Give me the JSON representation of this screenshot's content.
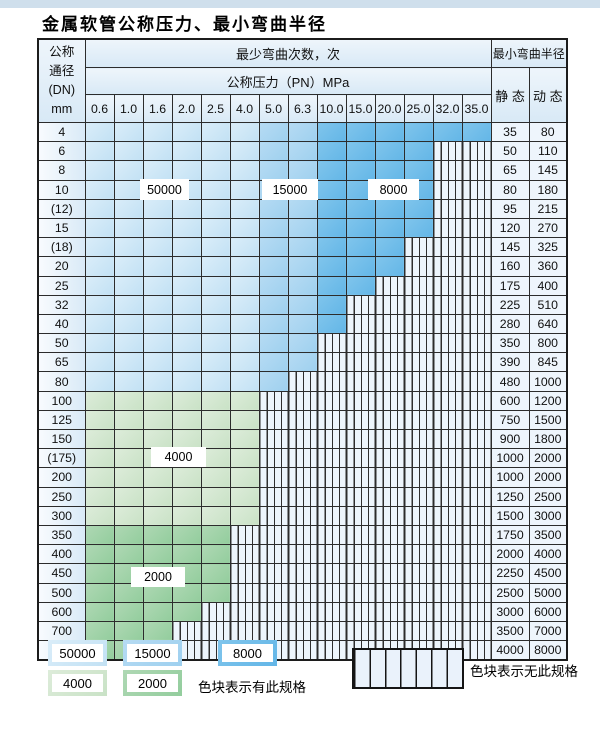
{
  "page": {
    "title": "金属软管公称压力、最小弯曲半径"
  },
  "table": {
    "header": {
      "dn_lines": [
        "公称",
        "通径",
        "(DN)",
        "mm"
      ],
      "bend_cycles": "最少弯曲次数，次",
      "pressure": "公称压力（PN）MPa",
      "radius": "最小弯曲半径",
      "static": "静 态",
      "dynamic": "动 态",
      "pressures": [
        "0.6",
        "1.0",
        "1.6",
        "2.0",
        "2.5",
        "4.0",
        "5.0",
        "6.3",
        "10.0",
        "15.0",
        "20.0",
        "25.0",
        "32.0",
        "35.0"
      ]
    },
    "rating_codes": {
      "A": "50000",
      "B": "15000",
      "C": "8000",
      "D": "4000",
      "E": "2000",
      "-": "none"
    },
    "rows": [
      {
        "dn": "4",
        "ratings": "AAAAAABBCCCCCC",
        "static": "35",
        "dynamic": "80"
      },
      {
        "dn": "6",
        "ratings": "AAAAAABBCCCC--",
        "static": "50",
        "dynamic": "110"
      },
      {
        "dn": "8",
        "ratings": "AAAAAABBCCCC--",
        "static": "65",
        "dynamic": "145"
      },
      {
        "dn": "10",
        "ratings": "AAAAAABBCCCC--",
        "static": "80",
        "dynamic": "180"
      },
      {
        "dn": "(12)",
        "ratings": "AAAAAABBCCCC--",
        "static": "95",
        "dynamic": "215"
      },
      {
        "dn": "15",
        "ratings": "AAAAAABBCCCC--",
        "static": "120",
        "dynamic": "270"
      },
      {
        "dn": "(18)",
        "ratings": "AAAAAABBCCC---",
        "static": "145",
        "dynamic": "325"
      },
      {
        "dn": "20",
        "ratings": "AAAAAABBCCC---",
        "static": "160",
        "dynamic": "360"
      },
      {
        "dn": "25",
        "ratings": "AAAAAABBCC----",
        "static": "175",
        "dynamic": "400"
      },
      {
        "dn": "32",
        "ratings": "AAAAAABBC-----",
        "static": "225",
        "dynamic": "510"
      },
      {
        "dn": "40",
        "ratings": "AAAAAABBC-----",
        "static": "280",
        "dynamic": "640"
      },
      {
        "dn": "50",
        "ratings": "AAAAAABB------",
        "static": "350",
        "dynamic": "800"
      },
      {
        "dn": "65",
        "ratings": "AAAAAABB------",
        "static": "390",
        "dynamic": "845"
      },
      {
        "dn": "80",
        "ratings": "AAAAAAB-------",
        "static": "480",
        "dynamic": "1000"
      },
      {
        "dn": "100",
        "ratings": "DDDDDD--------",
        "static": "600",
        "dynamic": "1200"
      },
      {
        "dn": "125",
        "ratings": "DDDDDD--------",
        "static": "750",
        "dynamic": "1500"
      },
      {
        "dn": "150",
        "ratings": "DDDDDD--------",
        "static": "900",
        "dynamic": "1800"
      },
      {
        "dn": "(175)",
        "ratings": "DDDDDD--------",
        "static": "1000",
        "dynamic": "2000"
      },
      {
        "dn": "200",
        "ratings": "DDDDDD--------",
        "static": "1000",
        "dynamic": "2000"
      },
      {
        "dn": "250",
        "ratings": "DDDDDD--------",
        "static": "1250",
        "dynamic": "2500"
      },
      {
        "dn": "300",
        "ratings": "DDDDDD--------",
        "static": "1500",
        "dynamic": "3000"
      },
      {
        "dn": "350",
        "ratings": "EEEEE---------",
        "static": "1750",
        "dynamic": "3500"
      },
      {
        "dn": "400",
        "ratings": "EEEEE---------",
        "static": "2000",
        "dynamic": "4000"
      },
      {
        "dn": "450",
        "ratings": "EEEEE---------",
        "static": "2250",
        "dynamic": "4500"
      },
      {
        "dn": "500",
        "ratings": "EEEEE---------",
        "static": "2500",
        "dynamic": "5000"
      },
      {
        "dn": "600",
        "ratings": "EEEE----------",
        "static": "3000",
        "dynamic": "6000"
      },
      {
        "dn": "700",
        "ratings": "EEE-----------",
        "static": "3500",
        "dynamic": "7000"
      },
      {
        "dn": "800",
        "ratings": "EEE-----------",
        "static": "4000",
        "dynamic": "8000"
      }
    ],
    "overlay_labels": [
      {
        "text": "50000"
      },
      {
        "text": "15000"
      },
      {
        "text": "8000"
      },
      {
        "text": "4000"
      },
      {
        "text": "2000"
      }
    ]
  },
  "legend": {
    "items": [
      {
        "value": "50000",
        "code": "A"
      },
      {
        "value": "15000",
        "code": "B"
      },
      {
        "value": "8000",
        "code": "C"
      },
      {
        "value": "4000",
        "code": "D"
      },
      {
        "value": "2000",
        "code": "E"
      }
    ],
    "available_note": "色块表示有此规格",
    "unavailable_note": "色块表示无此规格"
  },
  "colors": {
    "cycles_50000": "#c9e4f6",
    "cycles_15000": "#a5d3f0",
    "cycles_8000": "#6fbce9",
    "cycles_4000": "#d3e7d0",
    "cycles_2000": "#9dd2a4",
    "no_spec_bg": "#edf5fc",
    "header_bg": "#dcebf7"
  }
}
